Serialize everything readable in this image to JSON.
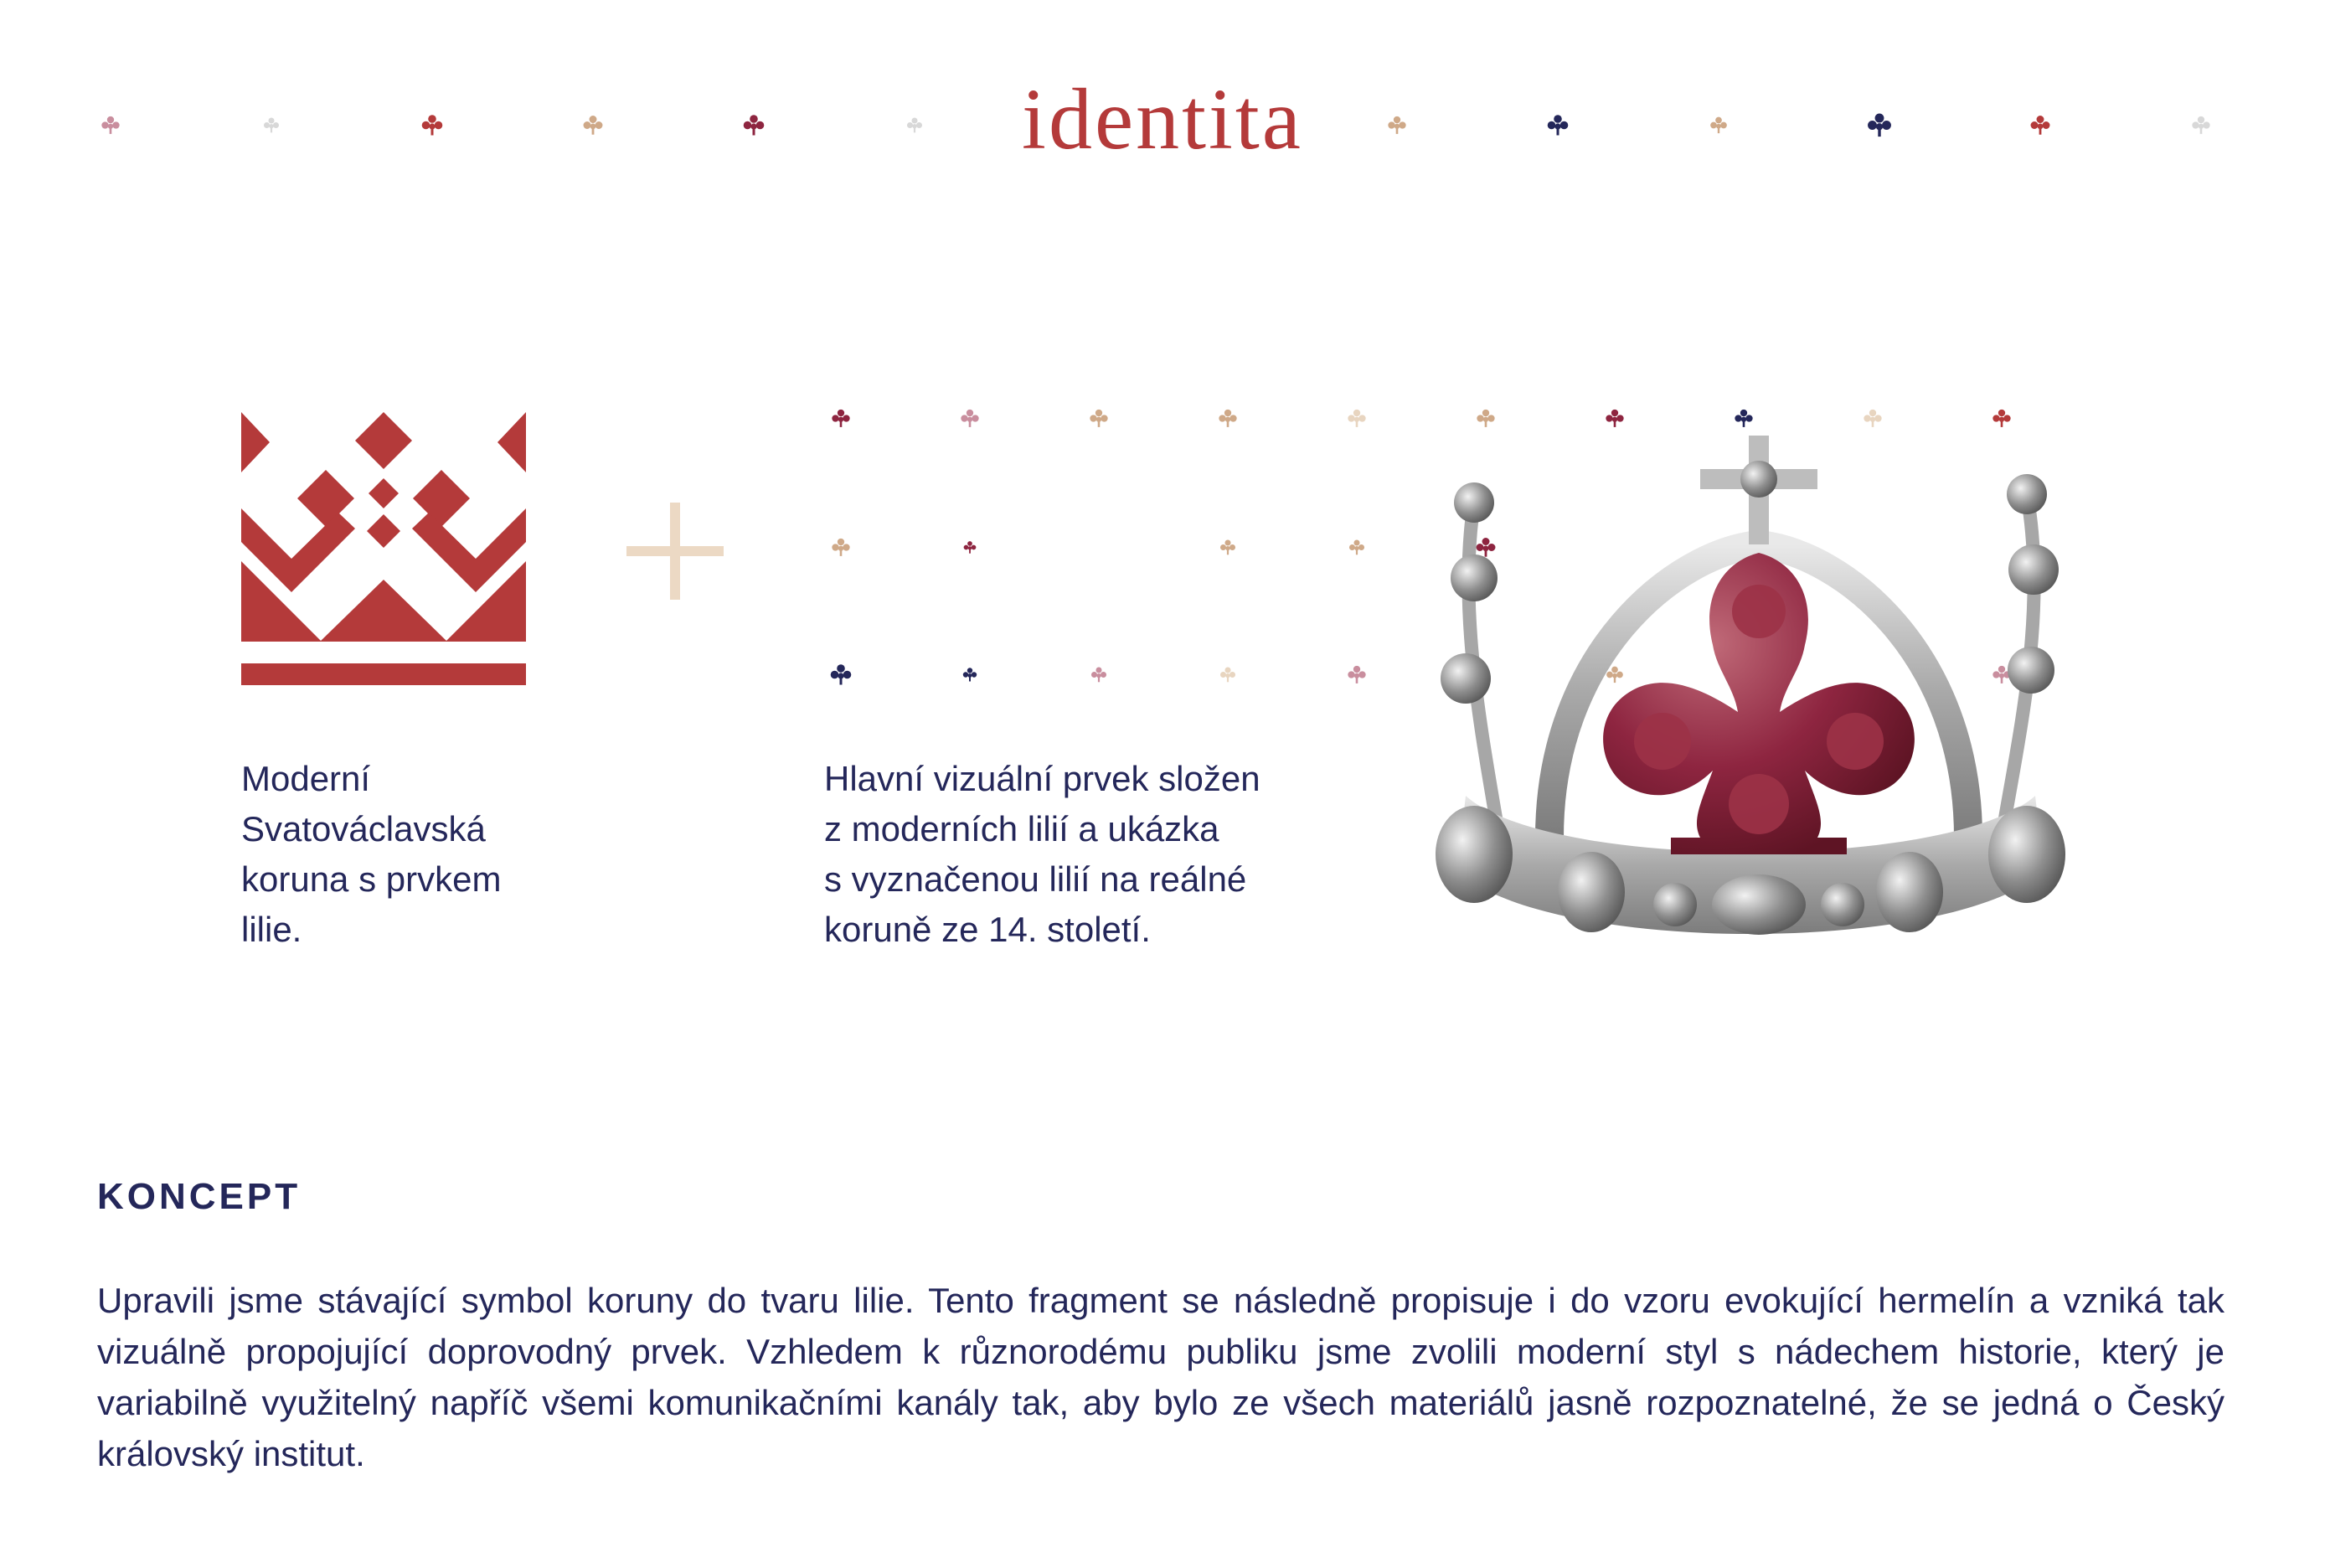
{
  "page": {
    "title": "identita"
  },
  "colors": {
    "accent_red": "#b43a3a",
    "navy": "#24275a",
    "wine": "#8e2540",
    "beige": "#e8d5c0",
    "tan": "#cfa988",
    "rose": "#c98e9e",
    "pale": "#d8d8d8",
    "crown_silver": "#b5b5b5",
    "lily_dark_red": "#7a1f2e"
  },
  "logo": {
    "icon": "svatovaclavska-crown-logo",
    "caption": "Moderní\nSvatováclavská\nkoruna s prvkem\nlilie."
  },
  "plus_symbol": {
    "icon": "plus-icon"
  },
  "pattern": {
    "icon": "lily-pattern",
    "caption": "Hlavní vizuální prvek složen\nz moderních lilií a ukázka\ns vyznačenou lilií na reálné\nkoruně ze 14. století."
  },
  "crown_photo": {
    "icon": "historical-crown-photo"
  },
  "concept": {
    "heading": "KONCEPT",
    "text": "Upravili jsme stávající symbol koruny do tvaru lilie. Tento fragment se následně propisuje i do vzoru evokující hermelín a vzniká tak vizuálně propojující doprovodný prvek. Vzhledem k různorodému publiku jsme zvolili moderní styl s nádechem historie, který je variabilně využitelný napříč všemi komunikačními kanály tak, aby bylo ze všech materiálů jasně rozpoznatelné, že se jedná o Český královský institut."
  }
}
